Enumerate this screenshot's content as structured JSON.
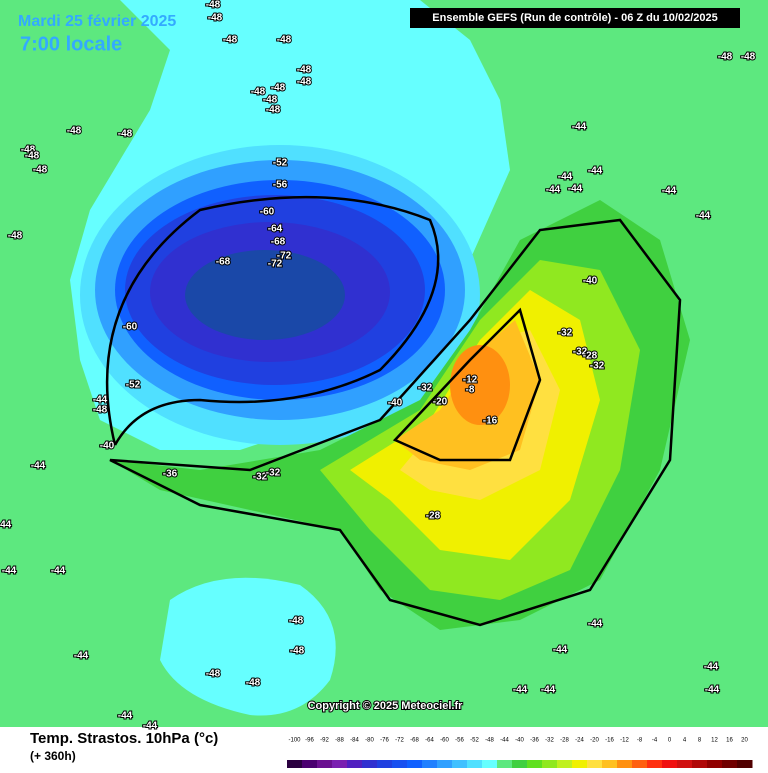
{
  "header": {
    "date": "Mardi 25 février 2025",
    "time": "7:00 locale",
    "run": "Ensemble GEFS  (Run de contrôle)  -  06 Z du 10/02/2025"
  },
  "footer": {
    "title": "Temp. Strastos. 10hPa (°c)",
    "lead": "(+ 360h)",
    "copyright": "Copyright © 2025 Meteociel.fr"
  },
  "colorbar": {
    "labels": [
      "-100",
      "-96",
      "-92",
      "-88",
      "-84",
      "-80",
      "-76",
      "-72",
      "-68",
      "-64",
      "-60",
      "-56",
      "-52",
      "-48",
      "-44",
      "-40",
      "-36",
      "-32",
      "-28",
      "-24",
      "-20",
      "-16",
      "-12",
      "-8",
      "-4",
      "0",
      "4",
      "8",
      "12",
      "16",
      "20"
    ],
    "colors": [
      "#2a0040",
      "#4a0070",
      "#6a1090",
      "#7a20b0",
      "#5020c0",
      "#3030d0",
      "#2040e0",
      "#1850f0",
      "#1060ff",
      "#2080ff",
      "#30a0ff",
      "#40c0ff",
      "#50e0ff",
      "#66ffff",
      "#5de87f",
      "#40d040",
      "#60e020",
      "#90e820",
      "#c0f020",
      "#f0f000",
      "#ffe040",
      "#ffc020",
      "#ff9010",
      "#ff6010",
      "#ff3010",
      "#f01010",
      "#d01010",
      "#b00808",
      "#900000",
      "#700000",
      "#500000"
    ]
  },
  "contour_labels": [
    "-48",
    "-48",
    "-48",
    "-48",
    "-48",
    "-48",
    "-48",
    "-48",
    "-48",
    "-48",
    "-48",
    "-48",
    "-48",
    "-48",
    "-48",
    "-48",
    "-52",
    "-56",
    "-60",
    "-64",
    "-68",
    "-72",
    "-72",
    "-68",
    "-60",
    "-52",
    "-44",
    "-48",
    "-40",
    "-44",
    "-36",
    "-32",
    "-32",
    "-28",
    "-40",
    "-32",
    "-20",
    "-12",
    "-8",
    "-16",
    "-32",
    "-32",
    "-28",
    "-32",
    "-40",
    "-44",
    "-44",
    "-44",
    "-44",
    "-44",
    "-44",
    "-44",
    "-48",
    "-48",
    "-44",
    "-44",
    "-44",
    "-48",
    "-48",
    "-44",
    "-48",
    "-48",
    "-44",
    "-44",
    "-44",
    "-44",
    "-44",
    "-44",
    "-44",
    "-44"
  ]
}
